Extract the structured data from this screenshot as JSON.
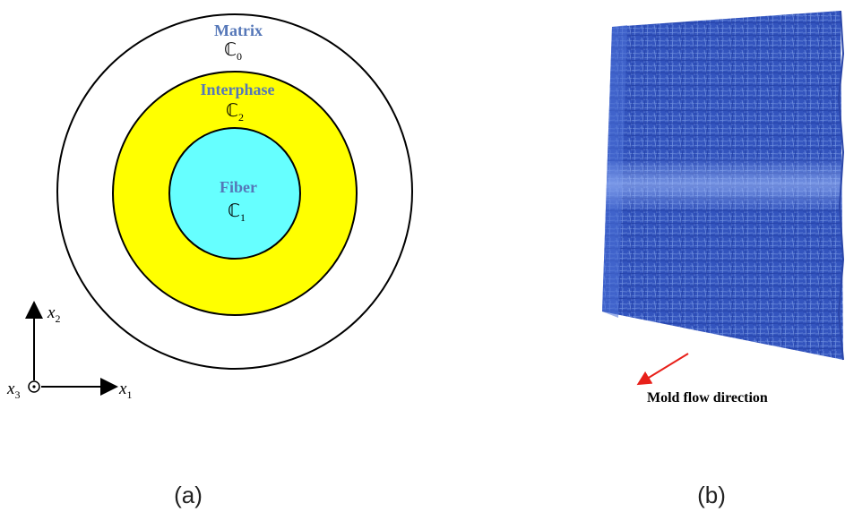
{
  "panel_a": {
    "caption": "(a)",
    "matrix": {
      "name": "Matrix",
      "tensor": "ℂ",
      "index": "0"
    },
    "interphase": {
      "name": "Interphase",
      "tensor": "ℂ",
      "index": "2"
    },
    "fiber": {
      "name": "Fiber",
      "tensor": "ℂ",
      "index": "1"
    },
    "axes": {
      "x1": {
        "symbol": "x",
        "index": "1"
      },
      "x2": {
        "symbol": "x",
        "index": "2"
      },
      "x3": {
        "symbol": "x",
        "index": "3"
      }
    },
    "colors": {
      "interphase": "#ffff00",
      "fiber": "#66ffff",
      "label": "#5577b8",
      "outline": "#000000"
    }
  },
  "panel_b": {
    "caption": "(b)",
    "flow_label": "Mold flow direction",
    "colors": {
      "specimen": "#3a5ec8",
      "arrow": "#e8201a"
    }
  }
}
